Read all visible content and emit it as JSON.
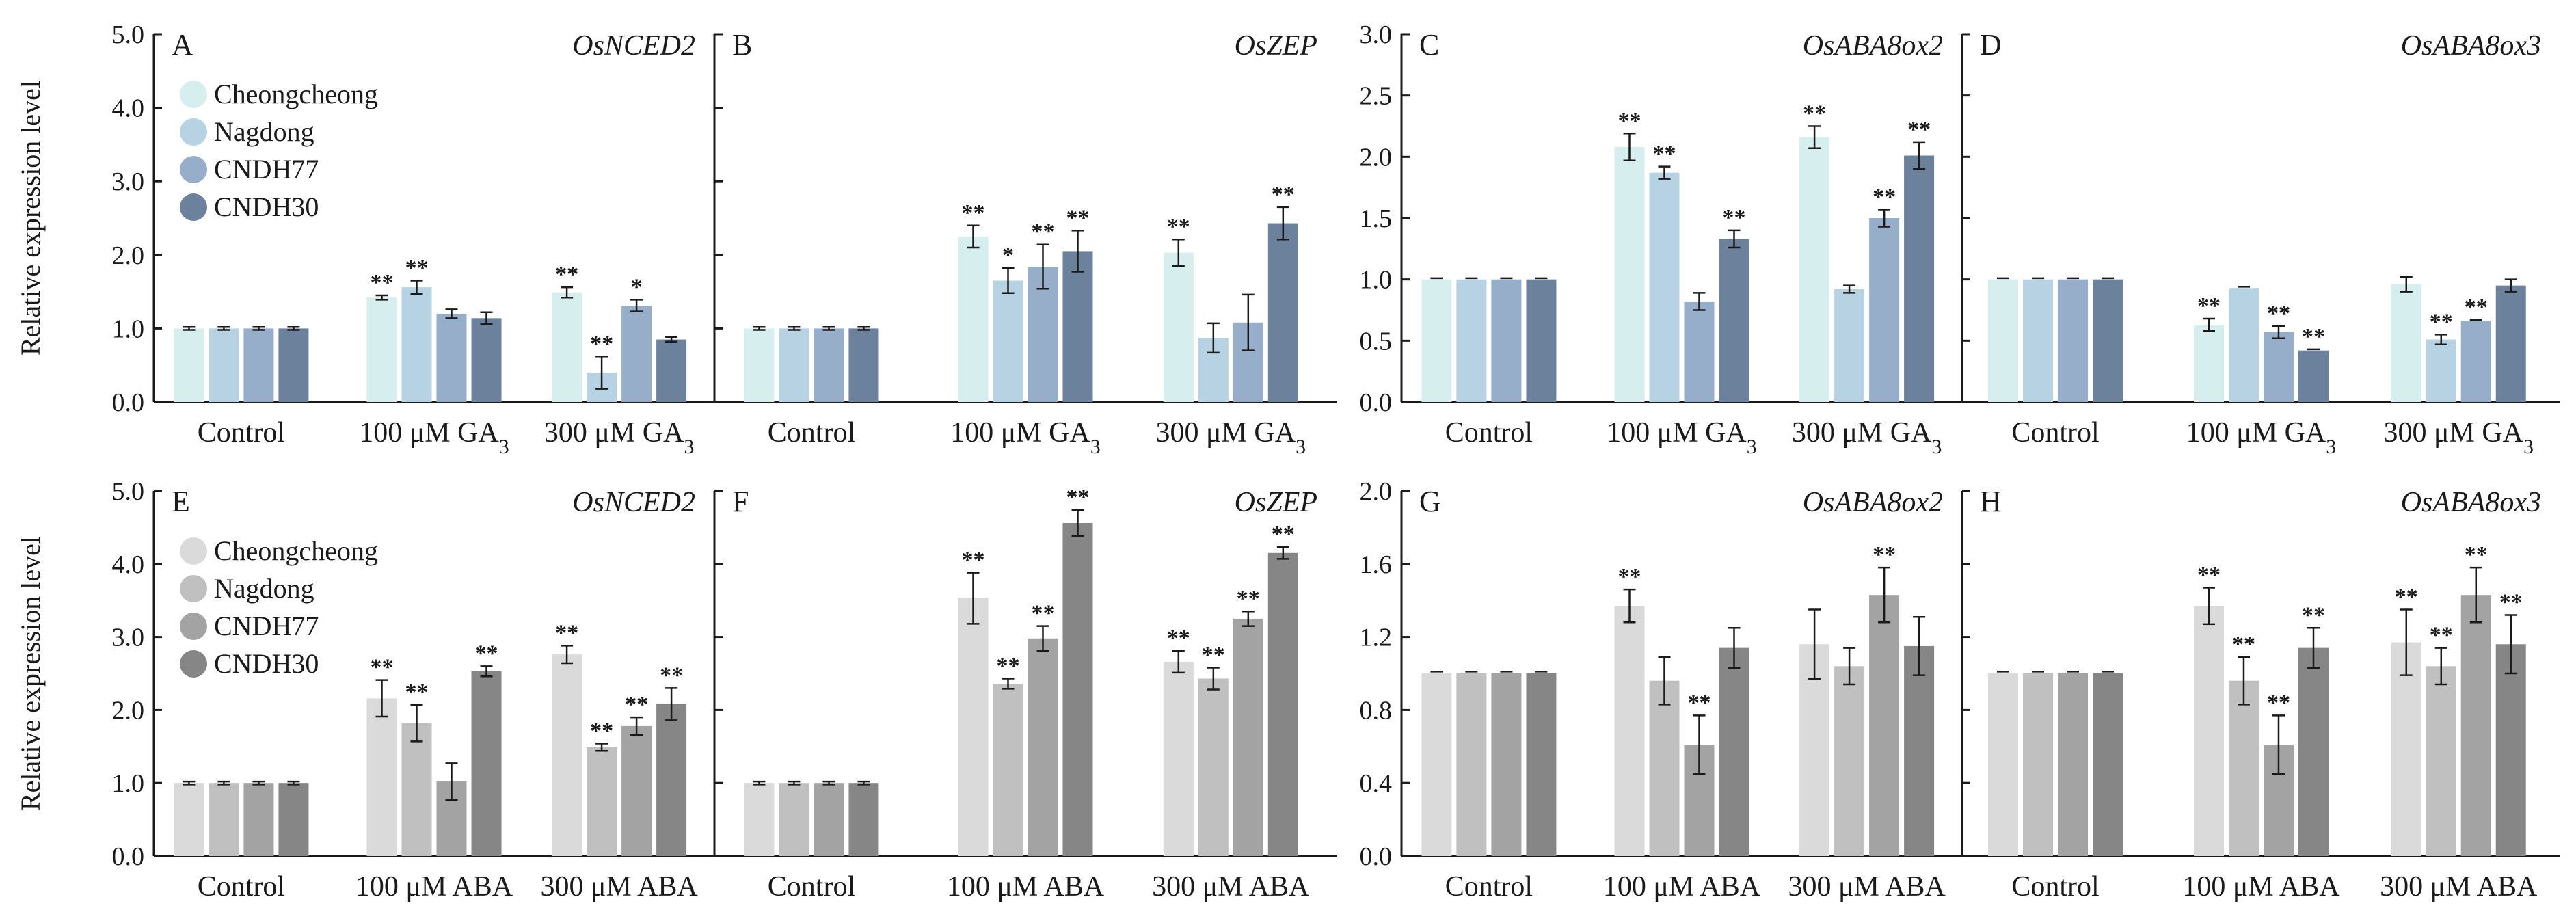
{
  "ylabel": "Relative expression level",
  "chart_data": [
    {
      "type": "bar",
      "panel": "A",
      "gene": "OsNCED2",
      "treatment": "GA",
      "categories": [
        "Control",
        "100 μM GA|3",
        "300 μM GA|3"
      ],
      "ylim": [
        0,
        5
      ],
      "yticks": [
        "0.0",
        "1.0",
        "2.0",
        "3.0",
        "4.0",
        "5.0"
      ],
      "legend": true,
      "series": [
        {
          "name": "Cheongcheong",
          "color": "#d6eeee",
          "values": [
            1.0,
            1.42,
            1.49
          ],
          "errors": [
            0.02,
            0.03,
            0.07
          ],
          "sig": [
            "",
            "**",
            "**"
          ]
        },
        {
          "name": "Nagdong",
          "color": "#b7d3e3",
          "values": [
            1.0,
            1.56,
            0.4
          ],
          "errors": [
            0.02,
            0.09,
            0.22
          ],
          "sig": [
            "",
            "**",
            "**"
          ]
        },
        {
          "name": "CNDH77",
          "color": "#97aecb",
          "values": [
            1.0,
            1.2,
            1.31
          ],
          "errors": [
            0.02,
            0.06,
            0.08
          ],
          "sig": [
            "",
            "",
            "*"
          ]
        },
        {
          "name": "CNDH30",
          "color": "#6b819c",
          "values": [
            1.0,
            1.14,
            0.85
          ],
          "errors": [
            0.02,
            0.08,
            0.03
          ],
          "sig": [
            "",
            "",
            ""
          ]
        }
      ]
    },
    {
      "type": "bar",
      "panel": "B",
      "gene": "OsZEP",
      "treatment": "GA",
      "categories": [
        "Control",
        "100 μM GA|3",
        "300 μM GA|3"
      ],
      "ylim": [
        0,
        5
      ],
      "yticks": [],
      "legend": false,
      "series": [
        {
          "name": "Cheongcheong",
          "color": "#d6eeee",
          "values": [
            1.0,
            2.25,
            2.03
          ],
          "errors": [
            0.02,
            0.15,
            0.18
          ],
          "sig": [
            "",
            "**",
            "**"
          ]
        },
        {
          "name": "Nagdong",
          "color": "#b7d3e3",
          "values": [
            1.0,
            1.65,
            0.87
          ],
          "errors": [
            0.02,
            0.17,
            0.2
          ],
          "sig": [
            "",
            "*",
            ""
          ]
        },
        {
          "name": "CNDH77",
          "color": "#97aecb",
          "values": [
            1.0,
            1.84,
            1.08
          ],
          "errors": [
            0.02,
            0.3,
            0.38
          ],
          "sig": [
            "",
            "**",
            ""
          ]
        },
        {
          "name": "CNDH30",
          "color": "#6b819c",
          "values": [
            1.0,
            2.05,
            2.43
          ],
          "errors": [
            0.02,
            0.28,
            0.22
          ],
          "sig": [
            "",
            "**",
            "**"
          ]
        }
      ]
    },
    {
      "type": "bar",
      "panel": "C",
      "gene": "OsABA8ox2",
      "treatment": "GA",
      "categories": [
        "Control",
        "100 μM GA|3",
        "300 μM GA|3"
      ],
      "ylim": [
        0,
        3
      ],
      "yticks": [
        "0.0",
        "0.5",
        "1.0",
        "1.5",
        "2.0",
        "2.5",
        "3.0"
      ],
      "legend": false,
      "series": [
        {
          "name": "Cheongcheong",
          "color": "#d6eeee",
          "values": [
            1.0,
            2.08,
            2.16
          ],
          "errors": [
            0.01,
            0.11,
            0.09
          ],
          "sig": [
            "",
            "**",
            "**"
          ]
        },
        {
          "name": "Nagdong",
          "color": "#b7d3e3",
          "values": [
            1.0,
            1.87,
            0.92
          ],
          "errors": [
            0.01,
            0.05,
            0.03
          ],
          "sig": [
            "",
            "**",
            ""
          ]
        },
        {
          "name": "CNDH77",
          "color": "#97aecb",
          "values": [
            1.0,
            0.82,
            1.5
          ],
          "errors": [
            0.01,
            0.07,
            0.07
          ],
          "sig": [
            "",
            "",
            "**"
          ]
        },
        {
          "name": "CNDH30",
          "color": "#6b819c",
          "values": [
            1.0,
            1.33,
            2.01
          ],
          "errors": [
            0.01,
            0.07,
            0.11
          ],
          "sig": [
            "",
            "**",
            "**"
          ]
        }
      ]
    },
    {
      "type": "bar",
      "panel": "D",
      "gene": "OsABA8ox3",
      "treatment": "GA",
      "categories": [
        "Control",
        "100 μM GA|3",
        "300 μM GA|3"
      ],
      "ylim": [
        0,
        3
      ],
      "yticks": [],
      "legend": false,
      "series": [
        {
          "name": "Cheongcheong",
          "color": "#d6eeee",
          "values": [
            1.0,
            0.63,
            0.96
          ],
          "errors": [
            0.01,
            0.05,
            0.06
          ],
          "sig": [
            "",
            "**",
            ""
          ]
        },
        {
          "name": "Nagdong",
          "color": "#b7d3e3",
          "values": [
            1.0,
            0.93,
            0.51
          ],
          "errors": [
            0.01,
            0.01,
            0.04
          ],
          "sig": [
            "",
            "",
            "**"
          ]
        },
        {
          "name": "CNDH77",
          "color": "#97aecb",
          "values": [
            1.0,
            0.57,
            0.66
          ],
          "errors": [
            0.01,
            0.05,
            0.01
          ],
          "sig": [
            "",
            "**",
            "**"
          ]
        },
        {
          "name": "CNDH30",
          "color": "#6b819c",
          "values": [
            1.0,
            0.42,
            0.95
          ],
          "errors": [
            0.01,
            0.01,
            0.05
          ],
          "sig": [
            "",
            "**",
            ""
          ]
        }
      ]
    },
    {
      "type": "bar",
      "panel": "E",
      "gene": "OsNCED2",
      "treatment": "ABA",
      "categories": [
        "Control",
        "100 μM ABA",
        "300 μM ABA"
      ],
      "ylim": [
        0,
        5
      ],
      "yticks": [
        "0.0",
        "1.0",
        "2.0",
        "3.0",
        "4.0",
        "5.0"
      ],
      "legend": true,
      "series": [
        {
          "name": "Cheongcheong",
          "color": "#dadada",
          "values": [
            1.0,
            2.16,
            2.76
          ],
          "errors": [
            0.02,
            0.25,
            0.12
          ],
          "sig": [
            "",
            "**",
            "**"
          ]
        },
        {
          "name": "Nagdong",
          "color": "#c0c0c0",
          "values": [
            1.0,
            1.82,
            1.49
          ],
          "errors": [
            0.02,
            0.25,
            0.05
          ],
          "sig": [
            "",
            "**",
            "**"
          ]
        },
        {
          "name": "CNDH77",
          "color": "#a3a3a3",
          "values": [
            1.0,
            1.02,
            1.78
          ],
          "errors": [
            0.02,
            0.25,
            0.12
          ],
          "sig": [
            "",
            "",
            "**"
          ]
        },
        {
          "name": "CNDH30",
          "color": "#868686",
          "values": [
            1.0,
            2.53,
            2.08
          ],
          "errors": [
            0.02,
            0.07,
            0.22
          ],
          "sig": [
            "",
            "**",
            "**"
          ]
        }
      ]
    },
    {
      "type": "bar",
      "panel": "F",
      "gene": "OsZEP",
      "treatment": "ABA",
      "categories": [
        "Control",
        "100 μM ABA",
        "300 μM ABA"
      ],
      "ylim": [
        0,
        5
      ],
      "yticks": [],
      "legend": false,
      "series": [
        {
          "name": "Cheongcheong",
          "color": "#dadada",
          "values": [
            1.0,
            3.53,
            2.66
          ],
          "errors": [
            0.02,
            0.35,
            0.15
          ],
          "sig": [
            "",
            "**",
            "**"
          ]
        },
        {
          "name": "Nagdong",
          "color": "#c0c0c0",
          "values": [
            1.0,
            2.36,
            2.43
          ],
          "errors": [
            0.02,
            0.07,
            0.15
          ],
          "sig": [
            "",
            "**",
            "**"
          ]
        },
        {
          "name": "CNDH77",
          "color": "#a3a3a3",
          "values": [
            1.0,
            2.98,
            3.25
          ],
          "errors": [
            0.02,
            0.17,
            0.1
          ],
          "sig": [
            "",
            "**",
            "**"
          ]
        },
        {
          "name": "CNDH30",
          "color": "#868686",
          "values": [
            1.0,
            4.56,
            4.15
          ],
          "errors": [
            0.02,
            0.18,
            0.08
          ],
          "sig": [
            "",
            "**",
            "**"
          ]
        }
      ]
    },
    {
      "type": "bar",
      "panel": "G",
      "gene": "OsABA8ox2",
      "treatment": "ABA",
      "categories": [
        "Control",
        "100 μM ABA",
        "300 μM ABA"
      ],
      "ylim": [
        0,
        2
      ],
      "yticks": [
        "0.0",
        "0.4",
        "0.8",
        "1.2",
        "1.6",
        "2.0"
      ],
      "legend": false,
      "series": [
        {
          "name": "Cheongcheong",
          "color": "#dadada",
          "values": [
            1.0,
            1.37,
            1.16
          ],
          "errors": [
            0.01,
            0.09,
            0.19
          ],
          "sig": [
            "",
            "**",
            ""
          ]
        },
        {
          "name": "Nagdong",
          "color": "#c0c0c0",
          "values": [
            1.0,
            0.96,
            1.04
          ],
          "errors": [
            0.01,
            0.13,
            0.1
          ],
          "sig": [
            "",
            "",
            ""
          ]
        },
        {
          "name": "CNDH77",
          "color": "#a3a3a3",
          "values": [
            1.0,
            0.61,
            1.43
          ],
          "errors": [
            0.01,
            0.16,
            0.15
          ],
          "sig": [
            "",
            "**",
            "**"
          ]
        },
        {
          "name": "CNDH30",
          "color": "#868686",
          "values": [
            1.0,
            1.14,
            1.15
          ],
          "errors": [
            0.01,
            0.11,
            0.16
          ],
          "sig": [
            "",
            "",
            ""
          ]
        }
      ]
    },
    {
      "type": "bar",
      "panel": "H",
      "gene": "OsABA8ox3",
      "treatment": "ABA",
      "categories": [
        "Control",
        "100 μM ABA",
        "300 μM ABA"
      ],
      "ylim": [
        0,
        2
      ],
      "yticks": [],
      "legend": false,
      "series": [
        {
          "name": "Cheongcheong",
          "color": "#dadada",
          "values": [
            1.0,
            1.37,
            1.17
          ],
          "errors": [
            0.01,
            0.1,
            0.18
          ],
          "sig": [
            "",
            "**",
            "**"
          ]
        },
        {
          "name": "Nagdong",
          "color": "#c0c0c0",
          "values": [
            1.0,
            0.96,
            1.04
          ],
          "errors": [
            0.01,
            0.13,
            0.1
          ],
          "sig": [
            "",
            "**",
            "**"
          ]
        },
        {
          "name": "CNDH77",
          "color": "#a3a3a3",
          "values": [
            1.0,
            0.61,
            1.43
          ],
          "errors": [
            0.01,
            0.16,
            0.15
          ],
          "sig": [
            "",
            "**",
            "**"
          ]
        },
        {
          "name": "CNDH30",
          "color": "#868686",
          "values": [
            1.0,
            1.14,
            1.16
          ],
          "errors": [
            0.01,
            0.11,
            0.16
          ],
          "sig": [
            "",
            "**",
            "**"
          ]
        }
      ]
    }
  ]
}
